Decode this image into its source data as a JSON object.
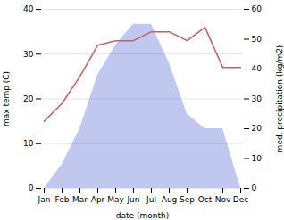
{
  "chart_data": {
    "type": "line",
    "categories": [
      "Jan",
      "Feb",
      "Mar",
      "Apr",
      "May",
      "Jun",
      "Jul",
      "Aug",
      "Sep",
      "Oct",
      "Nov",
      "Dec"
    ],
    "xlabel": "date (month)",
    "ylabel": "max temp (C)",
    "y2label": "med. precipitation (kg/m2)",
    "ylim": [
      0,
      40
    ],
    "yticks": [
      0,
      10,
      20,
      30,
      40
    ],
    "y2lim": [
      0,
      60
    ],
    "y2ticks": [
      0,
      10,
      20,
      30,
      40,
      50,
      60
    ],
    "grid": true,
    "series": [
      {
        "type": "area",
        "axis": "y2",
        "color": "#c0c8f0",
        "values": [
          0,
          8,
          20,
          38,
          48,
          55,
          55,
          42,
          25,
          20,
          20,
          0
        ]
      },
      {
        "type": "line",
        "axis": "y",
        "color": "#cd5c5c",
        "values": [
          15,
          19,
          25,
          32,
          33,
          33,
          35,
          35,
          33,
          36,
          27,
          27
        ]
      }
    ]
  }
}
